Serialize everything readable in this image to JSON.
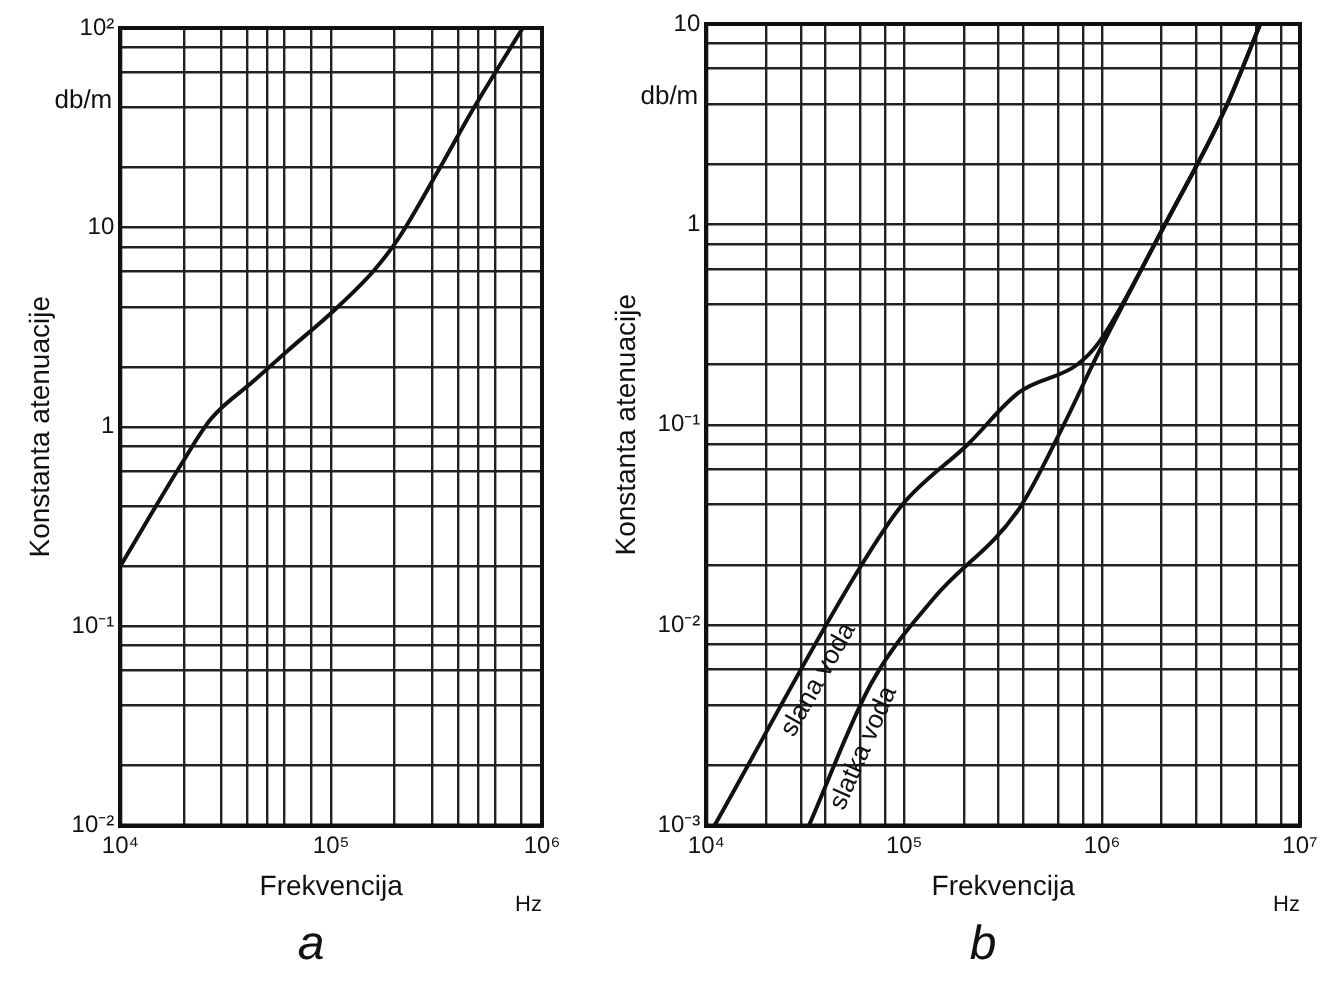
{
  "chart_data": [
    {
      "type": "line",
      "title": "a",
      "xlabel": "Frekvencija",
      "ylabel": "Konstanta atenuacije",
      "annotations": [
        "db/m",
        "Hz"
      ],
      "log": "xy",
      "grid": true,
      "legend": false,
      "marker": "none",
      "line_style": "solid",
      "xlim": [
        10000,
        1000000
      ],
      "ylim": [
        0.01,
        100
      ],
      "xticks": [
        {
          "value": 10000,
          "label": "10⁴"
        },
        {
          "value": 20000,
          "label": null
        },
        {
          "value": 30000,
          "label": null
        },
        {
          "value": 40000,
          "label": null
        },
        {
          "value": 50000,
          "label": null
        },
        {
          "value": 60000,
          "label": null
        },
        {
          "value": 80000,
          "label": null
        },
        {
          "value": 100000,
          "label": "10⁵"
        },
        {
          "value": 200000,
          "label": null
        },
        {
          "value": 300000,
          "label": null
        },
        {
          "value": 400000,
          "label": null
        },
        {
          "value": 500000,
          "label": null
        },
        {
          "value": 600000,
          "label": null
        },
        {
          "value": 800000,
          "label": null
        },
        {
          "value": 1000000,
          "label": "10⁶"
        }
      ],
      "yticks": [
        {
          "value": 0.01,
          "label": "10⁻²"
        },
        {
          "value": 0.02,
          "label": null
        },
        {
          "value": 0.04,
          "label": null
        },
        {
          "value": 0.06,
          "label": null
        },
        {
          "value": 0.08,
          "label": null
        },
        {
          "value": 0.1,
          "label": "10⁻¹"
        },
        {
          "value": 0.2,
          "label": null
        },
        {
          "value": 0.4,
          "label": null
        },
        {
          "value": 0.6,
          "label": null
        },
        {
          "value": 0.8,
          "label": null
        },
        {
          "value": 1,
          "label": "1"
        },
        {
          "value": 2,
          "label": null
        },
        {
          "value": 4,
          "label": null
        },
        {
          "value": 6,
          "label": null
        },
        {
          "value": 8,
          "label": null
        },
        {
          "value": 10,
          "label": "10"
        },
        {
          "value": 20,
          "label": null
        },
        {
          "value": 40,
          "label": null
        },
        {
          "value": 60,
          "label": null
        },
        {
          "value": 80,
          "label": null
        },
        {
          "value": 100,
          "label": "10²"
        }
      ],
      "series": [
        {
          "color": "#111111",
          "x": [
            10000,
            20000,
            27000,
            43000,
            62000,
            105000,
            160000,
            210000,
            320000,
            470000,
            810000
          ],
          "values": [
            0.2,
            0.68,
            1.1,
            1.7,
            2.4,
            3.9,
            6.1,
            8.9,
            19,
            39,
            100
          ]
        }
      ]
    },
    {
      "type": "line",
      "title": "b",
      "xlabel": "Frekvencija",
      "ylabel": "Konstanta atenuacije",
      "annotations": [
        "db/m",
        "Hz"
      ],
      "log": "xy",
      "grid": true,
      "legend": false,
      "marker": "none",
      "line_style": "solid",
      "xlim": [
        10000,
        10000000
      ],
      "ylim": [
        0.001,
        10
      ],
      "xticks": [
        {
          "value": 10000,
          "label": "10⁴"
        },
        {
          "value": 20000,
          "label": null
        },
        {
          "value": 30000,
          "label": null
        },
        {
          "value": 40000,
          "label": null
        },
        {
          "value": 60000,
          "label": null
        },
        {
          "value": 80000,
          "label": null
        },
        {
          "value": 100000,
          "label": "10⁵"
        },
        {
          "value": 200000,
          "label": null
        },
        {
          "value": 300000,
          "label": null
        },
        {
          "value": 400000,
          "label": null
        },
        {
          "value": 600000,
          "label": null
        },
        {
          "value": 800000,
          "label": null
        },
        {
          "value": 1000000,
          "label": "10⁶"
        },
        {
          "value": 2000000,
          "label": null
        },
        {
          "value": 3000000,
          "label": null
        },
        {
          "value": 4000000,
          "label": null
        },
        {
          "value": 6000000,
          "label": null
        },
        {
          "value": 8000000,
          "label": null
        },
        {
          "value": 10000000,
          "label": "10⁷"
        }
      ],
      "yticks": [
        {
          "value": 0.001,
          "label": "10⁻³"
        },
        {
          "value": 0.002,
          "label": null
        },
        {
          "value": 0.004,
          "label": null
        },
        {
          "value": 0.006,
          "label": null
        },
        {
          "value": 0.008,
          "label": null
        },
        {
          "value": 0.01,
          "label": "10⁻²"
        },
        {
          "value": 0.02,
          "label": null
        },
        {
          "value": 0.04,
          "label": null
        },
        {
          "value": 0.06,
          "label": null
        },
        {
          "value": 0.08,
          "label": null
        },
        {
          "value": 0.1,
          "label": "10⁻¹"
        },
        {
          "value": 0.2,
          "label": null
        },
        {
          "value": 0.4,
          "label": null
        },
        {
          "value": 0.6,
          "label": null
        },
        {
          "value": 0.8,
          "label": null
        },
        {
          "value": 1,
          "label": "1"
        },
        {
          "value": 2,
          "label": null
        },
        {
          "value": 4,
          "label": null
        },
        {
          "value": 6,
          "label": null
        },
        {
          "value": 8,
          "label": null
        },
        {
          "value": 10,
          "label": "10"
        }
      ],
      "series": [
        {
          "name": "slana voda",
          "color": "#111111",
          "x": [
            11000,
            60000,
            98000,
            210000,
            380000,
            750000,
            970000,
            2000000,
            4200000,
            6300000
          ],
          "values": [
            0.001,
            0.0195,
            0.04,
            0.08,
            0.145,
            0.2,
            0.26,
            0.93,
            3.8,
            10
          ]
        },
        {
          "name": "slatka voda",
          "color": "#111111",
          "x": [
            33000,
            68000,
            140000,
            380000,
            640000,
            940000,
            2000000,
            4200000,
            6300000
          ],
          "values": [
            0.001,
            0.0051,
            0.0135,
            0.038,
            0.1,
            0.22,
            0.93,
            3.8,
            10
          ]
        }
      ]
    }
  ]
}
